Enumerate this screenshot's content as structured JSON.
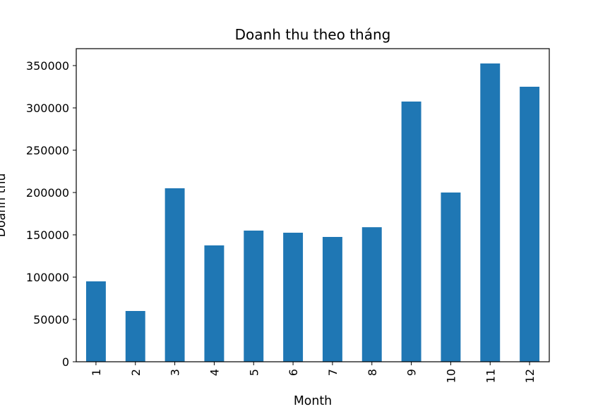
{
  "chart_data": {
    "type": "bar",
    "title": "Doanh thu theo tháng",
    "xlabel": "Month",
    "ylabel": "Doanh thu",
    "categories": [
      "1",
      "2",
      "3",
      "4",
      "5",
      "6",
      "7",
      "8",
      "9",
      "10",
      "11",
      "12"
    ],
    "values": [
      95000,
      60000,
      205000,
      137500,
      155000,
      152500,
      147500,
      159000,
      307500,
      200000,
      352500,
      325000
    ],
    "ylim": [
      0,
      370000
    ],
    "yticks": [
      0,
      50000,
      100000,
      150000,
      200000,
      250000,
      300000,
      350000
    ],
    "grid": false,
    "bar_color": "#1f77b4",
    "xtick_rotation": 90
  }
}
